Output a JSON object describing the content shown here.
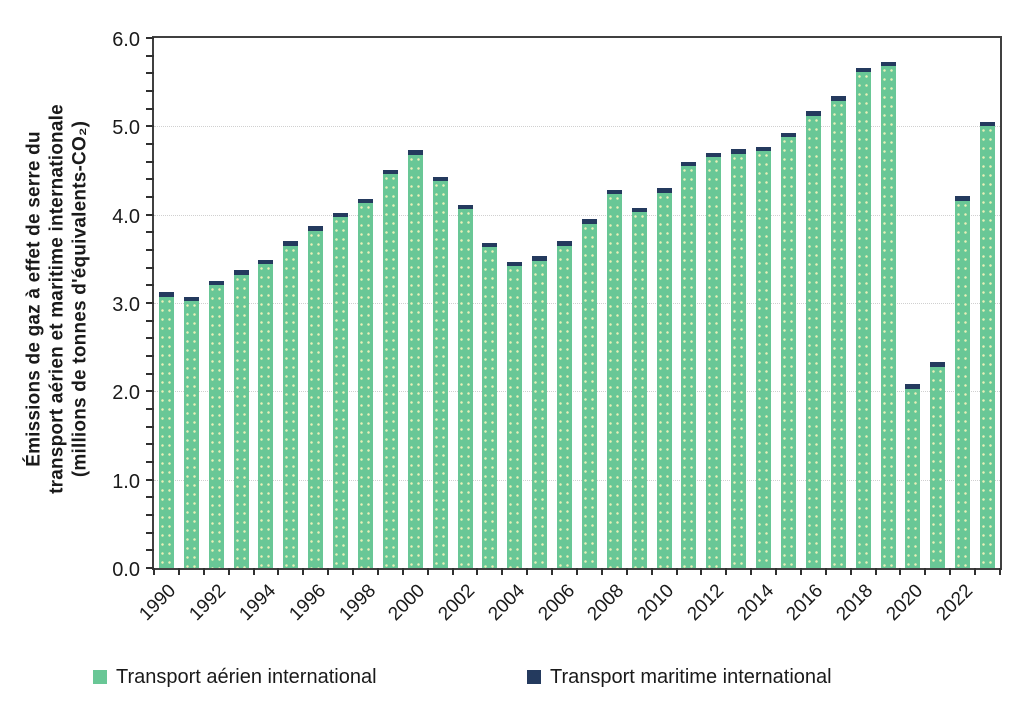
{
  "chart_data": {
    "type": "bar",
    "stacked": true,
    "title": "",
    "ylabel_lines": [
      "Émissions de gaz à effet de serre du",
      "transport aérien et maritime internationale",
      "(millions de tonnes d'équivalents-CO₂)"
    ],
    "ylim": [
      0,
      6
    ],
    "y_major_step": 1.0,
    "y_minor_step": 0.2,
    "y_tick_labels": [
      "0.0",
      "1.0",
      "2.0",
      "3.0",
      "4.0",
      "5.0",
      "6.0"
    ],
    "grid": "horizontal-dotted",
    "legend_position": "bottom",
    "x_label_every": 2,
    "categories": [
      "1990",
      "1991",
      "1992",
      "1993",
      "1994",
      "1995",
      "1996",
      "1997",
      "1998",
      "1999",
      "2000",
      "2001",
      "2002",
      "2003",
      "2004",
      "2005",
      "2006",
      "2007",
      "2008",
      "2009",
      "2010",
      "2011",
      "2012",
      "2013",
      "2014",
      "2015",
      "2016",
      "2017",
      "2018",
      "2019",
      "2020",
      "2021",
      "2022",
      "2023"
    ],
    "series": [
      {
        "name": "Transport aérien international",
        "color": "#69c796",
        "values": [
          3.07,
          3.02,
          3.2,
          3.32,
          3.44,
          3.65,
          3.82,
          3.97,
          4.13,
          4.46,
          4.68,
          4.38,
          4.06,
          3.63,
          3.42,
          3.48,
          3.65,
          3.9,
          4.23,
          4.03,
          4.25,
          4.55,
          4.65,
          4.69,
          4.72,
          4.88,
          5.12,
          5.29,
          5.61,
          5.68,
          2.03,
          2.28,
          4.16,
          5.0
        ]
      },
      {
        "name": "Transport maritime international",
        "color": "#243a5e",
        "values": [
          0.05,
          0.05,
          0.05,
          0.05,
          0.05,
          0.05,
          0.05,
          0.05,
          0.05,
          0.05,
          0.05,
          0.05,
          0.05,
          0.05,
          0.05,
          0.05,
          0.05,
          0.05,
          0.05,
          0.05,
          0.05,
          0.05,
          0.05,
          0.05,
          0.05,
          0.05,
          0.05,
          0.05,
          0.05,
          0.05,
          0.05,
          0.05,
          0.05,
          0.05
        ]
      }
    ]
  },
  "colors": {
    "frame": "#404040",
    "gridline": "#d0d0d0",
    "text": "#1a1a1a"
  }
}
